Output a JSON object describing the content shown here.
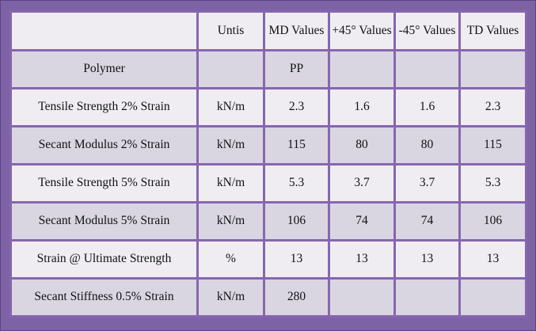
{
  "table": {
    "header": {
      "corner": "",
      "units": "Untis",
      "md": "MD Values",
      "plus45": "+45° Values",
      "minus45": "-45° Values",
      "td": "TD Values"
    },
    "rows": [
      {
        "property": "Polymer",
        "unit": "",
        "md": "PP",
        "plus45": "",
        "minus45": "",
        "td": ""
      },
      {
        "property": "Tensile Strength 2% Strain",
        "unit": "kN/m",
        "md": "2.3",
        "plus45": "1.6",
        "minus45": "1.6",
        "td": "2.3"
      },
      {
        "property": "Secant Modulus 2% Strain",
        "unit": "kN/m",
        "md": "115",
        "plus45": "80",
        "minus45": "80",
        "td": "115"
      },
      {
        "property": "Tensile Strength 5% Strain",
        "unit": "kN/m",
        "md": "5.3",
        "plus45": "3.7",
        "minus45": "3.7",
        "td": "5.3"
      },
      {
        "property": "Secant Modulus 5% Strain",
        "unit": "kN/m",
        "md": "106",
        "plus45": "74",
        "minus45": "74",
        "td": "106"
      },
      {
        "property": "Strain @ Ultimate Strength",
        "unit": "%",
        "md": "13",
        "plus45": "13",
        "minus45": "13",
        "td": "13"
      },
      {
        "property": "Secant Stiffness 0.5% Strain",
        "unit": "kN/m",
        "md": "280",
        "plus45": "",
        "minus45": "",
        "td": ""
      }
    ]
  },
  "colors": {
    "frame": "#7e62a6",
    "grid": "#8766ae",
    "row_light": "#efedf2",
    "row_dark": "#d9d6e2"
  }
}
